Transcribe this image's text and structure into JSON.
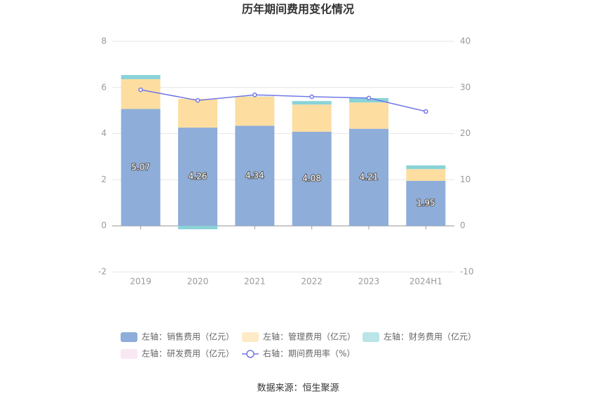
{
  "chart_data": {
    "type": "bar",
    "title": "历年期间费用变化情况",
    "source": "数据来源：恒生聚源",
    "categories": [
      "2019",
      "2020",
      "2021",
      "2022",
      "2023",
      "2024H1"
    ],
    "ylim": [
      -2,
      8
    ],
    "yticks": [
      -2,
      0,
      2,
      4,
      6,
      8
    ],
    "y2lim": [
      -10,
      40
    ],
    "y2ticks": [
      -10,
      0,
      10,
      20,
      30,
      40
    ],
    "grid": true,
    "series": [
      {
        "name": "左轴：销售费用（亿元）",
        "color": "#8eadd9",
        "values": [
          5.07,
          4.26,
          4.34,
          4.08,
          4.21,
          1.95
        ]
      },
      {
        "name": "左轴：管理费用（亿元）",
        "color": "#fddea0",
        "values": [
          1.29,
          1.25,
          1.26,
          1.18,
          1.14,
          0.51
        ]
      },
      {
        "name": "左轴：财务费用（亿元）",
        "color": "#8ad3d8",
        "values": [
          0.18,
          -0.15,
          0.01,
          0.15,
          0.19,
          0.16
        ]
      },
      {
        "name": "左轴：研发费用（亿元）",
        "color": "#f3d9ec",
        "values": [
          0,
          0,
          0,
          0,
          0,
          0
        ]
      },
      {
        "name": "右轴：期间费用率（%）",
        "color": "#7278e8",
        "type": "line",
        "axis": "y2",
        "values": [
          29.5,
          27.2,
          28.4,
          28.0,
          27.7,
          24.8
        ]
      }
    ]
  }
}
